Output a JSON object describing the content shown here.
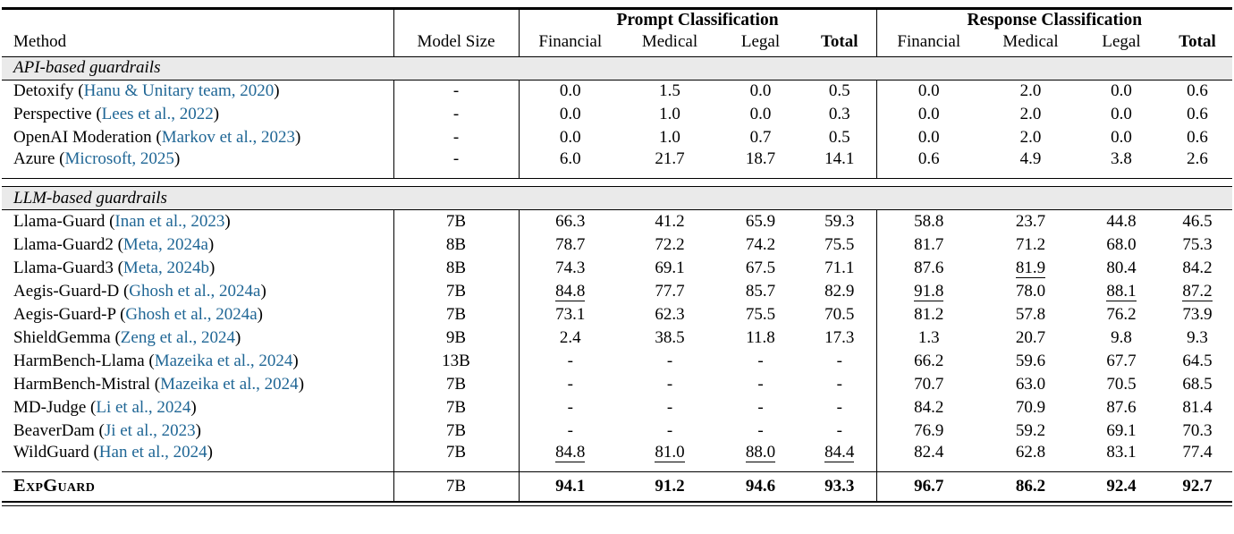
{
  "header": {
    "method_label": "Method",
    "model_size_label": "Model Size",
    "prompt_group_label": "Prompt Classification",
    "response_group_label": "Response Classification",
    "sub_columns": [
      "Financial",
      "Medical",
      "Legal",
      "Total"
    ]
  },
  "sections": [
    {
      "label": "API-based guardrails",
      "rows": [
        {
          "method": "Detoxify",
          "citation": "Hanu & Unitary team, 2020",
          "size": "-",
          "prompt": [
            "0.0",
            "1.5",
            "0.0",
            "0.5"
          ],
          "response": [
            "0.0",
            "2.0",
            "0.0",
            "0.6"
          ],
          "prompt_underline": [],
          "response_underline": []
        },
        {
          "method": "Perspective",
          "citation": "Lees et al., 2022",
          "size": "-",
          "prompt": [
            "0.0",
            "1.0",
            "0.0",
            "0.3"
          ],
          "response": [
            "0.0",
            "2.0",
            "0.0",
            "0.6"
          ],
          "prompt_underline": [],
          "response_underline": []
        },
        {
          "method": "OpenAI Moderation",
          "citation": "Markov et al., 2023",
          "size": "-",
          "prompt": [
            "0.0",
            "1.0",
            "0.7",
            "0.5"
          ],
          "response": [
            "0.0",
            "2.0",
            "0.0",
            "0.6"
          ],
          "prompt_underline": [],
          "response_underline": []
        },
        {
          "method": "Azure",
          "citation": "Microsoft, 2025",
          "size": "-",
          "prompt": [
            "6.0",
            "21.7",
            "18.7",
            "14.1"
          ],
          "response": [
            "0.6",
            "4.9",
            "3.8",
            "2.6"
          ],
          "prompt_underline": [],
          "response_underline": []
        }
      ]
    },
    {
      "label": "LLM-based guardrails",
      "rows": [
        {
          "method": "Llama-Guard",
          "citation": "Inan et al., 2023",
          "size": "7B",
          "prompt": [
            "66.3",
            "41.2",
            "65.9",
            "59.3"
          ],
          "response": [
            "58.8",
            "23.7",
            "44.8",
            "46.5"
          ],
          "prompt_underline": [],
          "response_underline": []
        },
        {
          "method": "Llama-Guard2",
          "citation": "Meta, 2024a",
          "size": "8B",
          "prompt": [
            "78.7",
            "72.2",
            "74.2",
            "75.5"
          ],
          "response": [
            "81.7",
            "71.2",
            "68.0",
            "75.3"
          ],
          "prompt_underline": [],
          "response_underline": []
        },
        {
          "method": "Llama-Guard3",
          "citation": "Meta, 2024b",
          "size": "8B",
          "prompt": [
            "74.3",
            "69.1",
            "67.5",
            "71.1"
          ],
          "response": [
            "87.6",
            "81.9",
            "80.4",
            "84.2"
          ],
          "prompt_underline": [],
          "response_underline": [
            1
          ]
        },
        {
          "method": "Aegis-Guard-D",
          "citation": "Ghosh et al., 2024a",
          "size": "7B",
          "prompt": [
            "84.8",
            "77.7",
            "85.7",
            "82.9"
          ],
          "response": [
            "91.8",
            "78.0",
            "88.1",
            "87.2"
          ],
          "prompt_underline": [
            0
          ],
          "response_underline": [
            0,
            2,
            3
          ]
        },
        {
          "method": "Aegis-Guard-P",
          "citation": "Ghosh et al., 2024a",
          "size": "7B",
          "prompt": [
            "73.1",
            "62.3",
            "75.5",
            "70.5"
          ],
          "response": [
            "81.2",
            "57.8",
            "76.2",
            "73.9"
          ],
          "prompt_underline": [],
          "response_underline": []
        },
        {
          "method": "ShieldGemma",
          "citation": "Zeng et al., 2024",
          "size": "9B",
          "prompt": [
            "2.4",
            "38.5",
            "11.8",
            "17.3"
          ],
          "response": [
            "1.3",
            "20.7",
            "9.8",
            "9.3"
          ],
          "prompt_underline": [],
          "response_underline": []
        },
        {
          "method": "HarmBench-Llama",
          "citation": "Mazeika et al., 2024",
          "size": "13B",
          "prompt": [
            "-",
            "-",
            "-",
            "-"
          ],
          "response": [
            "66.2",
            "59.6",
            "67.7",
            "64.5"
          ],
          "prompt_underline": [],
          "response_underline": []
        },
        {
          "method": "HarmBench-Mistral",
          "citation": "Mazeika et al., 2024",
          "size": "7B",
          "prompt": [
            "-",
            "-",
            "-",
            "-"
          ],
          "response": [
            "70.7",
            "63.0",
            "70.5",
            "68.5"
          ],
          "prompt_underline": [],
          "response_underline": []
        },
        {
          "method": "MD-Judge",
          "citation": "Li et al., 2024",
          "size": "7B",
          "prompt": [
            "-",
            "-",
            "-",
            "-"
          ],
          "response": [
            "84.2",
            "70.9",
            "87.6",
            "81.4"
          ],
          "prompt_underline": [],
          "response_underline": []
        },
        {
          "method": "BeaverDam",
          "citation": "Ji et al., 2023",
          "size": "7B",
          "prompt": [
            "-",
            "-",
            "-",
            "-"
          ],
          "response": [
            "76.9",
            "59.2",
            "69.1",
            "70.3"
          ],
          "prompt_underline": [],
          "response_underline": []
        },
        {
          "method": "WildGuard",
          "citation": "Han et al., 2024",
          "size": "7B",
          "prompt": [
            "84.8",
            "81.0",
            "88.0",
            "84.4"
          ],
          "response": [
            "82.4",
            "62.8",
            "83.1",
            "77.4"
          ],
          "prompt_underline": [
            0,
            1,
            2,
            3
          ],
          "response_underline": []
        }
      ]
    }
  ],
  "final_row": {
    "method": "ExpGuard",
    "size": "7B",
    "prompt": [
      "94.1",
      "91.2",
      "94.6",
      "93.3"
    ],
    "response": [
      "96.7",
      "86.2",
      "92.4",
      "92.7"
    ]
  },
  "colors": {
    "citation": "#1f6695",
    "band_bg": "#eaeaea",
    "rule": "#000000"
  }
}
